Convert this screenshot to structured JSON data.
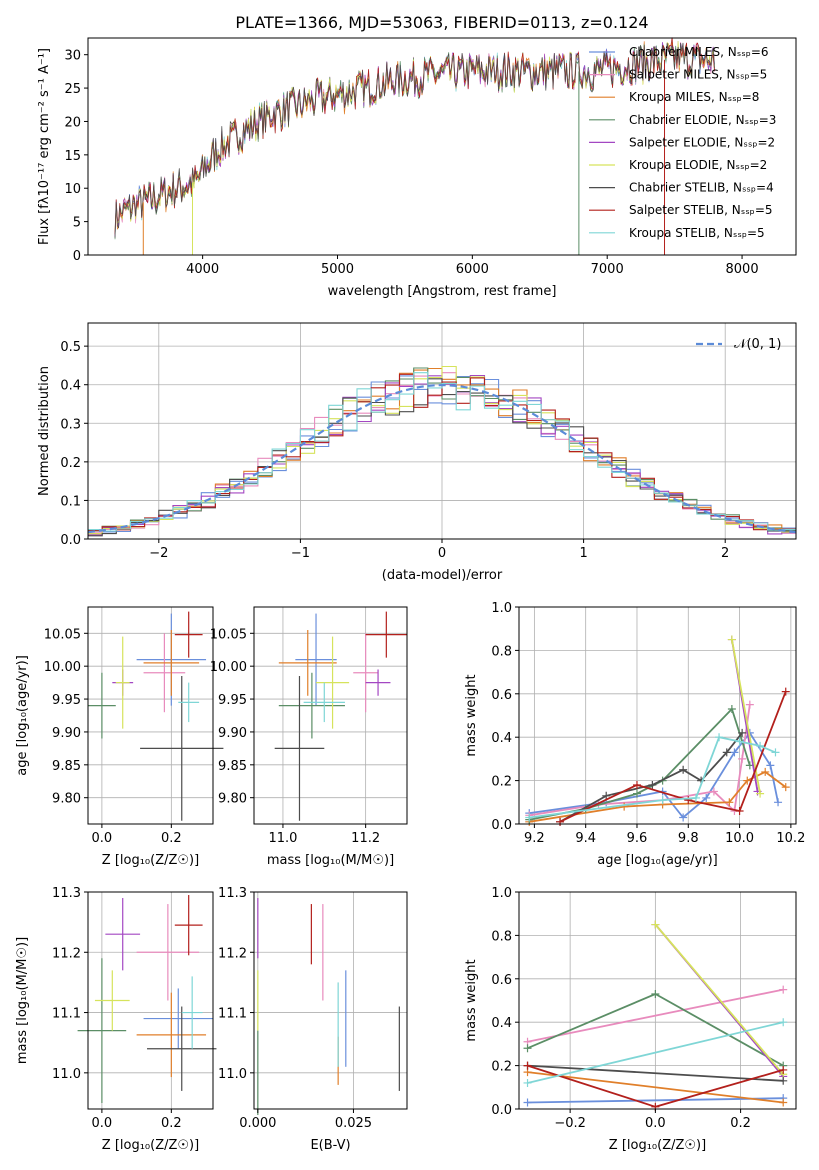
{
  "title": "PLATE=1366, MJD=53063, FIBERID=0113, z=0.124",
  "series_colors": [
    "#6a8fdc",
    "#e88bbd",
    "#e07f2a",
    "#5b8e66",
    "#a347c2",
    "#d6e35c",
    "#4d4d4d",
    "#b3201c",
    "#7fd6d6"
  ],
  "chart_data": [
    {
      "type": "line",
      "id": "spectrum",
      "xlabel": "wavelength [Angstrom, rest frame]",
      "ylabel": "Flux [fλ10⁻¹⁷ erg cm⁻² s⁻¹ A⁻¹]",
      "xlim": [
        3150,
        8400
      ],
      "ylim": [
        0,
        32.5
      ],
      "xticks": [
        4000,
        5000,
        6000,
        7000,
        8000
      ],
      "yticks": [
        0,
        5,
        10,
        15,
        20,
        25,
        30
      ],
      "continuum": {
        "x": [
          3350,
          3500,
          3650,
          3800,
          3950,
          4100,
          4300,
          4500,
          4800,
          5100,
          5400,
          5700,
          6000,
          6300,
          6600,
          6900,
          7200,
          7500,
          7800
        ],
        "y": [
          5.5,
          7.5,
          8.5,
          10,
          11,
          15.5,
          18.5,
          21,
          23,
          24.5,
          26,
          27,
          27.5,
          27.5,
          27.5,
          27.5,
          28.5,
          29.5,
          29
        ]
      },
      "legend": [
        "Chabrier MILES, Nₛₛₚ=6",
        "Salpeter MILES, Nₛₛₚ=5",
        "Kroupa MILES, Nₛₛₚ=8",
        "Chabrier ELODIE, Nₛₛₚ=3",
        "Salpeter ELODIE, Nₛₛₚ=2",
        "Kroupa ELODIE, Nₛₛₚ=2",
        "Chabrier STELIB, Nₛₛₚ=4",
        "Salpeter STELIB, Nₛₛₚ=5",
        "Kroupa STELIB, Nₛₛₚ=5"
      ],
      "grid": false
    },
    {
      "type": "histogram",
      "id": "residuals",
      "xlabel": "(data-model)/error",
      "ylabel": "Normed distribution",
      "xlim": [
        -2.5,
        2.5
      ],
      "ylim": [
        0,
        0.56
      ],
      "xticks": [
        -2,
        -1,
        0,
        1,
        2
      ],
      "xticklabels": [
        "−2",
        "−1",
        "0",
        "1",
        "2"
      ],
      "yticks": [
        0.0,
        0.1,
        0.2,
        0.3,
        0.4,
        0.5
      ],
      "yticklabels": [
        "0.0",
        "0.1",
        "0.2",
        "0.3",
        "0.4",
        "0.5"
      ],
      "legend": [
        "𝒩(0, 1)"
      ],
      "grid": true
    },
    {
      "type": "scatter",
      "id": "age-vs-z",
      "xlabel": "Z [log₁₀(Z/Z☉)]",
      "ylabel": "age  [log₁₀(age/yr)]",
      "xlim": [
        -0.04,
        0.32
      ],
      "ylim": [
        9.76,
        10.09
      ],
      "xticks": [
        0.0,
        0.2
      ],
      "xticklabels": [
        "0.0",
        "0.2"
      ],
      "yticks": [
        9.8,
        9.85,
        9.9,
        9.95,
        10.0,
        10.05
      ],
      "yticklabels": [
        "9.80",
        "9.85",
        "9.90",
        "9.95",
        "10.00",
        "10.05"
      ],
      "points": [
        {
          "c": 0,
          "x": 0.2,
          "y": 10.01,
          "xerr": 0.1,
          "yerr": 0.07
        },
        {
          "c": 1,
          "x": 0.18,
          "y": 9.99,
          "xerr": 0.06,
          "yerr": 0.06
        },
        {
          "c": 2,
          "x": 0.2,
          "y": 10.005,
          "xerr": 0.08,
          "yerr": 0.05
        },
        {
          "c": 3,
          "x": 0.0,
          "y": 9.94,
          "xerr": 0.04,
          "yerr": 0.05
        },
        {
          "c": 4,
          "x": 0.06,
          "y": 9.975,
          "xerr": 0.03,
          "yerr": 0.02
        },
        {
          "c": 5,
          "x": 0.06,
          "y": 9.975,
          "xerr": 0.02,
          "yerr": 0.07
        },
        {
          "c": 6,
          "x": 0.23,
          "y": 9.875,
          "xerr": 0.12,
          "yerr": 0.11
        },
        {
          "c": 7,
          "x": 0.25,
          "y": 10.048,
          "xerr": 0.04,
          "yerr": 0.035
        },
        {
          "c": 8,
          "x": 0.25,
          "y": 9.945,
          "xerr": 0.03,
          "yerr": 0.03
        }
      ],
      "grid": true
    },
    {
      "type": "scatter",
      "id": "age-vs-mass",
      "xlabel": "mass [log₁₀(M/M☉)]",
      "ylabel": "",
      "xlim": [
        10.93,
        11.3
      ],
      "ylim": [
        9.76,
        10.09
      ],
      "xticks": [
        11.0,
        11.2
      ],
      "xticklabels": [
        "11.0",
        "11.2"
      ],
      "yticks": [
        9.8,
        9.85,
        9.9,
        9.95,
        10.0,
        10.05
      ],
      "yticklabels": [
        "9.80",
        "9.85",
        "9.90",
        "9.95",
        "10.00",
        "10.05"
      ],
      "points": [
        {
          "c": 0,
          "x": 11.08,
          "y": 10.01,
          "xerr": 0.05,
          "yerr": 0.07
        },
        {
          "c": 1,
          "x": 11.2,
          "y": 9.99,
          "xerr": 0.03,
          "yerr": 0.06
        },
        {
          "c": 2,
          "x": 11.06,
          "y": 10.005,
          "xerr": 0.07,
          "yerr": 0.05
        },
        {
          "c": 3,
          "x": 11.07,
          "y": 9.94,
          "xerr": 0.08,
          "yerr": 0.05
        },
        {
          "c": 4,
          "x": 11.23,
          "y": 9.975,
          "xerr": 0.03,
          "yerr": 0.02
        },
        {
          "c": 5,
          "x": 11.12,
          "y": 9.975,
          "xerr": 0.04,
          "yerr": 0.07
        },
        {
          "c": 6,
          "x": 11.04,
          "y": 9.875,
          "xerr": 0.06,
          "yerr": 0.11
        },
        {
          "c": 7,
          "x": 11.25,
          "y": 10.048,
          "xerr": 0.05,
          "yerr": 0.035
        },
        {
          "c": 8,
          "x": 11.1,
          "y": 9.945,
          "xerr": 0.05,
          "yerr": 0.03
        }
      ],
      "grid": true
    },
    {
      "type": "line",
      "id": "weight-vs-age",
      "xlabel": "age  [log₁₀(age/yr)]",
      "ylabel": "mass weight",
      "xlim": [
        9.14,
        10.22
      ],
      "ylim": [
        0,
        1.0
      ],
      "xticks": [
        9.2,
        9.4,
        9.6,
        9.8,
        10.0,
        10.2
      ],
      "xticklabels": [
        "9.2",
        "9.4",
        "9.6",
        "9.8",
        "10.0",
        "10.2"
      ],
      "yticks": [
        0.0,
        0.2,
        0.4,
        0.6,
        0.8,
        1.0
      ],
      "yticklabels": [
        "0.0",
        "0.2",
        "0.4",
        "0.6",
        "0.8",
        "1.0"
      ],
      "series": [
        {
          "c": 0,
          "x": [
            9.18,
            9.48,
            9.7,
            9.78,
            9.87,
            9.98,
            10.04,
            10.12,
            10.15
          ],
          "y": [
            0.05,
            0.1,
            0.15,
            0.03,
            0.12,
            0.33,
            0.42,
            0.27,
            0.1
          ]
        },
        {
          "c": 1,
          "x": [
            9.18,
            9.45,
            9.7,
            9.9,
            9.98,
            10.01,
            10.04
          ],
          "y": [
            0.04,
            0.09,
            0.11,
            0.15,
            0.06,
            0.3,
            0.55
          ]
        },
        {
          "c": 2,
          "x": [
            9.18,
            9.55,
            9.7,
            9.96,
            10.03,
            10.1,
            10.18
          ],
          "y": [
            0.01,
            0.08,
            0.09,
            0.1,
            0.2,
            0.24,
            0.17
          ]
        },
        {
          "c": 3,
          "x": [
            9.18,
            9.4,
            9.6,
            9.7,
            9.97,
            10.04
          ],
          "y": [
            0.02,
            0.07,
            0.14,
            0.2,
            0.53,
            0.27
          ]
        },
        {
          "c": 4,
          "x": [
            9.97,
            10.07
          ],
          "y": [
            0.85,
            0.15
          ]
        },
        {
          "c": 5,
          "x": [
            9.97,
            10.08
          ],
          "y": [
            0.85,
            0.14
          ]
        },
        {
          "c": 6,
          "x": [
            9.3,
            9.48,
            9.66,
            9.78,
            9.85,
            9.95,
            10.01
          ],
          "y": [
            0.01,
            0.13,
            0.18,
            0.25,
            0.2,
            0.33,
            0.42
          ]
        },
        {
          "c": 7,
          "x": [
            9.3,
            9.6,
            9.8,
            10.0,
            10.18
          ],
          "y": [
            0.01,
            0.18,
            0.11,
            0.06,
            0.61
          ]
        },
        {
          "c": 8,
          "x": [
            9.18,
            9.7,
            9.83,
            9.92,
            10.0,
            10.08,
            10.14
          ],
          "y": [
            0.03,
            0.11,
            0.12,
            0.4,
            0.38,
            0.36,
            0.33
          ]
        }
      ],
      "grid": true
    },
    {
      "type": "scatter",
      "id": "mass-vs-z",
      "xlabel": "Z [log₁₀(Z/Z☉)]",
      "ylabel": "mass [log₁₀(M/M☉)]",
      "xlim": [
        -0.04,
        0.32
      ],
      "ylim": [
        10.94,
        11.3
      ],
      "xticks": [
        0.0,
        0.2
      ],
      "xticklabels": [
        "0.0",
        "0.2"
      ],
      "yticks": [
        11.0,
        11.1,
        11.2,
        11.3
      ],
      "yticklabels": [
        "11.0",
        "11.1",
        "11.2",
        "11.3"
      ],
      "points": [
        {
          "c": 0,
          "x": 0.22,
          "y": 11.09,
          "xerr": 0.1,
          "yerr": 0.05
        },
        {
          "c": 1,
          "x": 0.19,
          "y": 11.2,
          "xerr": 0.09,
          "yerr": 0.08
        },
        {
          "c": 2,
          "x": 0.2,
          "y": 11.063,
          "xerr": 0.1,
          "yerr": 0.07
        },
        {
          "c": 3,
          "x": 0.0,
          "y": 11.07,
          "xerr": 0.07,
          "yerr": 0.12
        },
        {
          "c": 4,
          "x": 0.06,
          "y": 11.23,
          "xerr": 0.05,
          "yerr": 0.06
        },
        {
          "c": 5,
          "x": 0.03,
          "y": 11.12,
          "xerr": 0.05,
          "yerr": 0.05
        },
        {
          "c": 6,
          "x": 0.23,
          "y": 11.04,
          "xerr": 0.1,
          "yerr": 0.07
        },
        {
          "c": 7,
          "x": 0.25,
          "y": 11.245,
          "xerr": 0.04,
          "yerr": 0.05
        },
        {
          "c": 8,
          "x": 0.26,
          "y": 11.1,
          "xerr": 0.03,
          "yerr": 0.06
        }
      ],
      "grid": true
    },
    {
      "type": "scatter",
      "id": "mass-vs-ebv",
      "xlabel": "E(B-V)",
      "ylabel": "",
      "xlim": [
        -0.001,
        0.039
      ],
      "ylim": [
        10.94,
        11.3
      ],
      "xticks": [
        0.0,
        0.025
      ],
      "xticklabels": [
        "0.000",
        "0.025"
      ],
      "yticks": [
        11.0,
        11.1,
        11.2,
        11.3
      ],
      "yticklabels": [
        "11.0",
        "11.1",
        "11.2",
        "11.3"
      ],
      "points": [
        {
          "c": 0,
          "x": 0.023,
          "y": 11.09,
          "yerr": 0.08
        },
        {
          "c": 1,
          "x": 0.017,
          "y": 11.2,
          "yerr": 0.08
        },
        {
          "c": 2,
          "x": 0.021,
          "y": 11.02,
          "yerr": 0.04
        },
        {
          "c": 3,
          "x": 0.0,
          "y": 11.0,
          "yerr": 0.07
        },
        {
          "c": 4,
          "x": 0.0,
          "y": 11.24,
          "yerr": 0.05
        },
        {
          "c": 5,
          "x": 0.0,
          "y": 11.12,
          "yerr": 0.05
        },
        {
          "c": 6,
          "x": 0.037,
          "y": 11.04,
          "yerr": 0.07
        },
        {
          "c": 7,
          "x": 0.014,
          "y": 11.23,
          "yerr": 0.05
        },
        {
          "c": 8,
          "x": 0.021,
          "y": 11.08,
          "yerr": 0.07
        }
      ],
      "grid": true
    },
    {
      "type": "line",
      "id": "weight-vs-z",
      "xlabel": "Z [log₁₀(Z/Z☉)]",
      "ylabel": "mass weight",
      "xlim": [
        -0.32,
        0.33
      ],
      "ylim": [
        0,
        1.0
      ],
      "xticks": [
        -0.2,
        0.0,
        0.2
      ],
      "xticklabels": [
        "−0.2",
        "0.0",
        "0.2"
      ],
      "yticks": [
        0.0,
        0.2,
        0.4,
        0.6,
        0.8,
        1.0
      ],
      "yticklabels": [
        "0.0",
        "0.2",
        "0.4",
        "0.6",
        "0.8",
        "1.0"
      ],
      "series": [
        {
          "c": 0,
          "x": [
            -0.3,
            0.3
          ],
          "y": [
            0.03,
            0.05
          ]
        },
        {
          "c": 1,
          "x": [
            -0.3,
            0.3
          ],
          "y": [
            0.31,
            0.55
          ]
        },
        {
          "c": 2,
          "x": [
            -0.3,
            0.3
          ],
          "y": [
            0.17,
            0.03
          ]
        },
        {
          "c": 3,
          "x": [
            -0.3,
            0.0,
            0.3
          ],
          "y": [
            0.28,
            0.53,
            0.2
          ]
        },
        {
          "c": 4,
          "x": [
            0.0,
            0.3
          ],
          "y": [
            0.85,
            0.15
          ]
        },
        {
          "c": 5,
          "x": [
            0.0,
            0.3
          ],
          "y": [
            0.85,
            0.16
          ]
        },
        {
          "c": 6,
          "x": [
            -0.3,
            0.3
          ],
          "y": [
            0.2,
            0.13
          ]
        },
        {
          "c": 7,
          "x": [
            -0.3,
            0.0,
            0.3
          ],
          "y": [
            0.2,
            0.01,
            0.18
          ]
        },
        {
          "c": 8,
          "x": [
            -0.3,
            0.3
          ],
          "y": [
            0.12,
            0.4
          ]
        }
      ],
      "grid": true
    }
  ]
}
